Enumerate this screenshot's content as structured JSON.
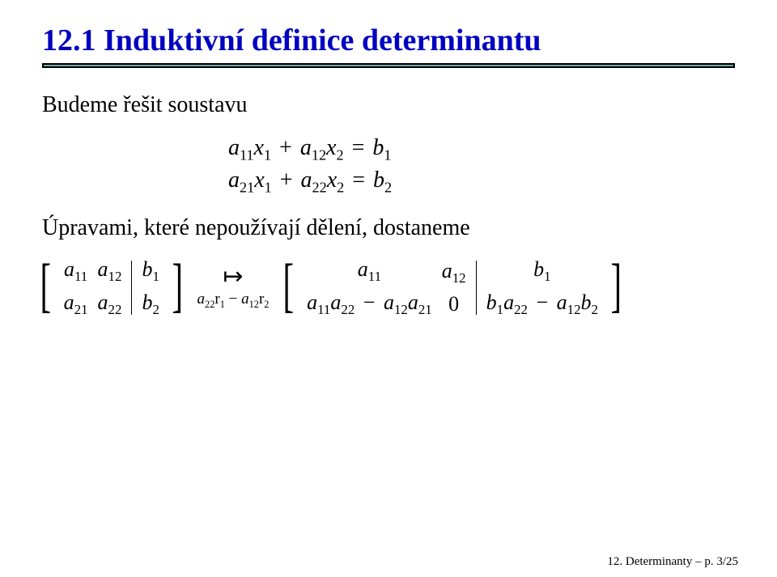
{
  "title": {
    "text": "12.1 Induktivní definice determinantu",
    "color": "#0000c0"
  },
  "rule": {
    "outer_color": "#000000",
    "inner_color": "#6fa8a8"
  },
  "intro": "Budeme řešit soustavu",
  "system": {
    "row1": {
      "a": "a",
      "a_sub": "11",
      "x1": "x",
      "x1_sub": "1",
      "plus": "+",
      "b": "a",
      "b_sub": "12",
      "x2": "x",
      "x2_sub": "2",
      "eq": "=",
      "rhs": "b",
      "rhs_sub": "1"
    },
    "row2": {
      "a": "a",
      "a_sub": "21",
      "x1": "x",
      "x1_sub": "1",
      "plus": "+",
      "b": "a",
      "b_sub": "22",
      "x2": "x",
      "x2_sub": "2",
      "eq": "=",
      "rhs": "b",
      "rhs_sub": "2"
    }
  },
  "mid": "Úpravami, které nepoužívají dělení, dostaneme",
  "matrix_left": {
    "c11": "a",
    "c11_sub": "11",
    "c12": "a",
    "c12_sub": "12",
    "c13": "b",
    "c13_sub": "1",
    "c21": "a",
    "c21_sub": "21",
    "c22": "a",
    "c22_sub": "22",
    "c23": "b",
    "c23_sub": "2"
  },
  "arrow": {
    "symbol": "↦",
    "label_a": "a",
    "label_a_sub": "22",
    "label_r1": "r",
    "label_r1_sub": "1",
    "minus": "−",
    "label_b": "a",
    "label_b_sub": "12",
    "label_r2": "r",
    "label_r2_sub": "2"
  },
  "matrix_right": {
    "r11_a": "a",
    "r11_a_sub": "11",
    "r12_a": "a",
    "r12_a_sub": "12",
    "r13_a": "b",
    "r13_a_sub": "1",
    "r21_p1": "a",
    "r21_p1_sub": "11",
    "r21_p2": "a",
    "r21_p2_sub": "22",
    "r21_minus": "−",
    "r21_p3": "a",
    "r21_p3_sub": "12",
    "r21_p4": "a",
    "r21_p4_sub": "21",
    "r22": "0",
    "r23_p1": "b",
    "r23_p1_sub": "1",
    "r23_p2": "a",
    "r23_p2_sub": "22",
    "r23_minus": "−",
    "r23_p3": "a",
    "r23_p3_sub": "12",
    "r23_p4": "b",
    "r23_p4_sub": "2"
  },
  "footer": "12. Determinanty – p. 3/25"
}
